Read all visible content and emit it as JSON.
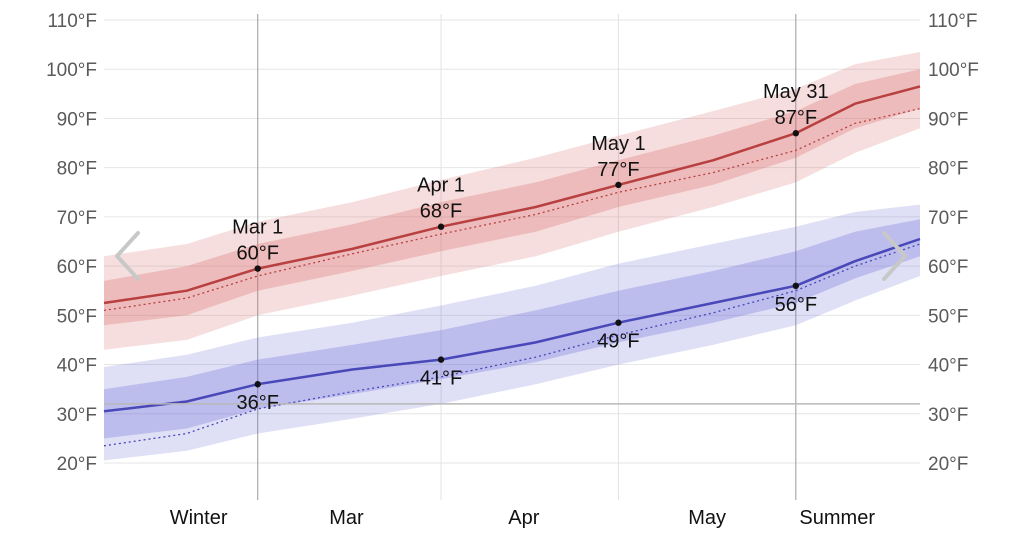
{
  "chart_data": {
    "type": "area",
    "title": "",
    "xlabel": "",
    "ylabel": "",
    "unit": "°F",
    "x_range": [
      "2025-02-03",
      "2025-06-21"
    ],
    "ylim": [
      15,
      110
    ],
    "y_ticks": [
      20,
      30,
      40,
      50,
      60,
      70,
      80,
      90,
      100,
      110
    ],
    "y_tick_labels": [
      "20°F",
      "30°F",
      "40°F",
      "50°F",
      "60°F",
      "70°F",
      "80°F",
      "90°F",
      "100°F",
      "110°F"
    ],
    "x_tick_labels": [
      {
        "label": "Winter",
        "date": "2025-02-19"
      },
      {
        "label": "Mar",
        "date": "2025-03-16"
      },
      {
        "label": "Apr",
        "date": "2025-04-15"
      },
      {
        "label": "May",
        "date": "2025-05-16"
      },
      {
        "label": "Summer",
        "date": "2025-06-07"
      }
    ],
    "month_dividers": [
      "2025-03-01",
      "2025-04-01",
      "2025-05-01",
      "2025-05-31"
    ],
    "freezing_line": 32,
    "grid": true,
    "legend": "none",
    "dates": [
      "2025-02-03",
      "2025-02-17",
      "2025-03-01",
      "2025-03-17",
      "2025-04-01",
      "2025-04-17",
      "2025-05-01",
      "2025-05-17",
      "2025-05-31",
      "2025-06-10",
      "2025-06-21"
    ],
    "series": [
      {
        "color": "#b84040",
        "values": [
          52.5,
          55,
          59.5,
          63.5,
          68,
          72,
          76.5,
          81.5,
          87,
          93,
          96.5
        ],
        "average": [
          51,
          53.5,
          58,
          62.5,
          66.5,
          70.5,
          75,
          79,
          83.5,
          89,
          92
        ],
        "band_inner": [
          [
            48,
            57
          ],
          [
            50,
            60
          ],
          [
            55,
            64.5
          ],
          [
            59,
            68.5
          ],
          [
            63,
            73
          ],
          [
            67,
            77
          ],
          [
            72,
            81.5
          ],
          [
            76.5,
            86.5
          ],
          [
            82,
            91.5
          ],
          [
            88,
            97
          ],
          [
            92,
            100
          ]
        ],
        "band_outer": [
          [
            43,
            62
          ],
          [
            45,
            64.5
          ],
          [
            50,
            69
          ],
          [
            54,
            73
          ],
          [
            58,
            77.5
          ],
          [
            62,
            82
          ],
          [
            67,
            86.5
          ],
          [
            72,
            91.5
          ],
          [
            77,
            96
          ],
          [
            83,
            101
          ],
          [
            88,
            103.5
          ]
        ]
      },
      {
        "color": "#4848b8",
        "values": [
          30.5,
          32.5,
          36,
          39,
          41,
          44.5,
          48.5,
          52.5,
          56,
          61,
          65.5
        ],
        "average": [
          23.5,
          26,
          31,
          34.5,
          37.5,
          41.5,
          46,
          50.5,
          55,
          60,
          64.5
        ],
        "band_inner": [
          [
            25,
            35
          ],
          [
            27,
            37.5
          ],
          [
            31,
            41
          ],
          [
            34,
            44
          ],
          [
            37,
            47
          ],
          [
            40.5,
            51
          ],
          [
            44.5,
            55
          ],
          [
            48.5,
            59
          ],
          [
            52.5,
            63
          ],
          [
            57.5,
            67
          ],
          [
            62,
            69.5
          ]
        ],
        "band_outer": [
          [
            20.5,
            39.5
          ],
          [
            22.5,
            42
          ],
          [
            26,
            45.5
          ],
          [
            29,
            48.5
          ],
          [
            32,
            52
          ],
          [
            36,
            56
          ],
          [
            40,
            60.5
          ],
          [
            44,
            64.5
          ],
          [
            48,
            68
          ],
          [
            53,
            71
          ],
          [
            58,
            72.5
          ]
        ]
      }
    ],
    "annotations": [
      {
        "series": 0,
        "date": "2025-03-01",
        "value": 59.5,
        "label": "Mar 1",
        "value_label": "60°F",
        "position": "above"
      },
      {
        "series": 0,
        "date": "2025-04-01",
        "value": 68,
        "label": "Apr 1",
        "value_label": "68°F",
        "position": "above"
      },
      {
        "series": 0,
        "date": "2025-05-01",
        "value": 76.5,
        "label": "May 1",
        "value_label": "77°F",
        "position": "above"
      },
      {
        "series": 0,
        "date": "2025-05-31",
        "value": 87,
        "label": "May 31",
        "value_label": "87°F",
        "position": "above"
      },
      {
        "series": 1,
        "date": "2025-03-01",
        "value": 36,
        "label": "",
        "value_label": "36°F",
        "position": "below"
      },
      {
        "series": 1,
        "date": "2025-04-01",
        "value": 41,
        "label": "",
        "value_label": "41°F",
        "position": "below"
      },
      {
        "series": 1,
        "date": "2025-05-01",
        "value": 48.5,
        "label": "",
        "value_label": "49°F",
        "position": "below"
      },
      {
        "series": 1,
        "date": "2025-05-31",
        "value": 56,
        "label": "",
        "value_label": "56°F",
        "position": "below"
      }
    ]
  },
  "nav": {
    "prev_icon": "chevron-left-icon",
    "next_icon": "chevron-right-icon",
    "color": "#c8c8c8"
  }
}
